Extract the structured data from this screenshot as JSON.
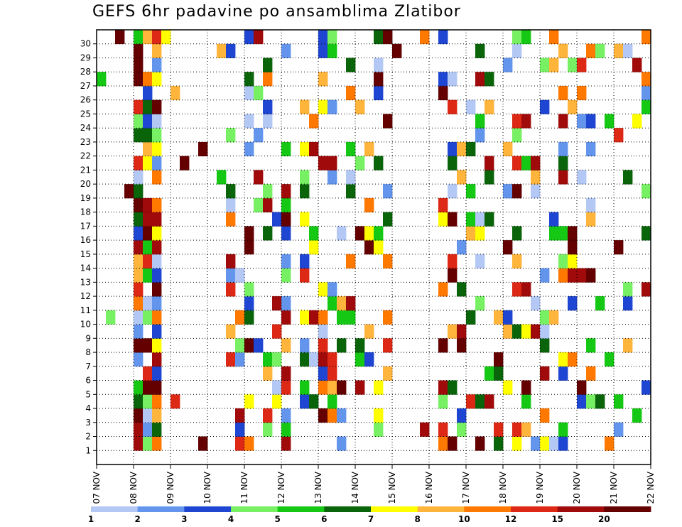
{
  "chart_data": {
    "type": "heatmap",
    "title": "GEFS 6hr padavine po ansamblima Zlatibor",
    "y_categories": [
      "1",
      "2",
      "3",
      "4",
      "5",
      "6",
      "7",
      "8",
      "9",
      "10",
      "11",
      "12",
      "13",
      "14",
      "15",
      "16",
      "17",
      "18",
      "19",
      "20",
      "21",
      "22",
      "23",
      "24",
      "25",
      "26",
      "27",
      "28",
      "29",
      "30"
    ],
    "x_tick_labels": [
      "07 NOV",
      "08 NOV",
      "09 NOV",
      "10 NOV",
      "11 NOV",
      "12 NOV",
      "13 NOV",
      "14 NOV",
      "15 NOV",
      "16 NOV",
      "17 NOV",
      "18 NOV",
      "19 NOV",
      "20 NOV",
      "21 NOV",
      "22 NOV"
    ],
    "time_steps_per_day": 4,
    "grid": true,
    "colorbar": {
      "labels": [
        "1",
        "2",
        "3",
        "4",
        "5",
        "6",
        "7",
        "8",
        "10",
        "12",
        "15",
        "20"
      ],
      "colors": [
        "#b4c8f5",
        "#6495ed",
        "#1e46d2",
        "#78f064",
        "#14c814",
        "#0a640a",
        "#ffff00",
        "#ffb43c",
        "#ff7800",
        "#dc2814",
        "#a00a0a",
        "#640000"
      ]
    },
    "cells": [
      [
        1,
        0,
        2
      ],
      [
        1,
        0,
        1
      ],
      [
        1,
        1,
        1
      ],
      [
        1,
        1,
        2
      ],
      [
        1,
        2,
        2
      ],
      [
        1,
        2,
        3
      ],
      [
        1,
        3,
        0
      ],
      [
        1,
        3,
        1
      ],
      [
        1,
        3,
        2
      ],
      [
        1,
        4,
        0
      ],
      [
        1,
        4,
        1
      ],
      [
        1,
        4,
        2
      ],
      [
        1,
        5,
        1
      ],
      [
        1,
        5,
        2
      ],
      [
        1,
        6,
        0
      ],
      [
        1,
        6,
        1
      ],
      [
        1,
        7,
        1
      ],
      [
        1,
        7,
        2
      ],
      [
        1,
        8,
        1
      ],
      [
        1,
        9,
        1
      ],
      [
        1,
        10,
        1
      ],
      [
        1,
        11,
        1
      ],
      [
        1,
        12,
        1
      ],
      [
        1,
        13,
        1
      ],
      [
        1,
        14,
        1
      ],
      [
        1,
        15,
        1
      ],
      [
        1,
        16,
        1
      ],
      [
        1,
        17,
        1
      ],
      [
        1,
        18,
        1
      ],
      [
        1,
        19,
        1
      ],
      [
        1,
        20,
        1
      ],
      [
        1,
        21,
        1
      ],
      [
        1,
        22,
        1
      ],
      [
        1,
        23,
        1
      ],
      [
        1,
        24,
        1
      ],
      [
        1,
        25,
        1
      ],
      [
        1,
        26,
        1
      ],
      [
        1,
        27,
        1
      ],
      [
        1,
        28,
        1
      ],
      [
        1,
        29,
        1
      ],
      [
        2,
        0,
        8
      ],
      [
        2,
        0,
        4
      ],
      [
        2,
        1,
        1
      ],
      [
        2,
        2,
        1
      ],
      [
        2,
        2,
        2
      ],
      [
        2,
        3,
        8
      ],
      [
        2,
        3,
        4
      ],
      [
        2,
        4,
        1
      ],
      [
        2,
        4,
        2
      ],
      [
        2,
        5,
        1
      ],
      [
        2,
        6,
        0
      ],
      [
        2,
        6,
        1
      ],
      [
        2,
        7,
        2
      ],
      [
        2,
        7,
        4
      ],
      [
        2,
        8,
        2
      ],
      [
        2,
        8,
        4
      ],
      [
        2,
        9,
        1
      ],
      [
        2,
        10,
        7
      ],
      [
        2,
        11,
        1
      ],
      [
        2,
        11,
        1
      ],
      [
        2,
        12,
        4
      ],
      [
        2,
        12,
        10
      ],
      [
        2,
        13,
        0
      ],
      [
        2,
        13,
        0
      ],
      [
        2,
        14,
        8
      ],
      [
        2,
        14,
        9
      ],
      [
        2,
        15,
        1
      ],
      [
        2,
        16,
        10
      ],
      [
        2,
        16,
        4
      ],
      [
        2,
        17,
        5
      ],
      [
        2,
        19,
        10
      ],
      [
        2,
        19,
        7
      ],
      [
        2,
        20,
        1
      ],
      [
        2,
        21,
        7
      ],
      [
        2,
        22,
        1
      ],
      [
        2,
        22,
        1
      ],
      [
        2,
        23,
        7
      ],
      [
        2,
        23,
        7
      ],
      [
        2,
        24,
        7
      ],
      [
        2,
        24,
        4
      ],
      [
        2,
        25,
        1
      ],
      [
        2,
        25,
        1
      ],
      [
        2,
        26,
        9
      ],
      [
        2,
        26,
        1
      ],
      [
        2,
        27,
        9
      ],
      [
        2,
        27,
        1
      ],
      [
        2,
        28,
        10
      ],
      [
        2,
        28,
        10
      ],
      [
        2,
        29,
        8
      ],
      [
        2,
        29,
        7
      ],
      [
        3,
        0,
        8
      ],
      [
        3,
        0,
        4
      ],
      [
        3,
        1,
        1
      ],
      [
        3,
        2,
        1
      ],
      [
        3,
        2,
        2
      ],
      [
        3,
        3,
        8
      ],
      [
        3,
        3,
        4
      ],
      [
        3,
        4,
        1
      ],
      [
        3,
        4,
        2
      ],
      [
        3,
        5,
        1
      ],
      [
        3,
        6,
        0
      ],
      [
        3,
        6,
        1
      ],
      [
        3,
        7,
        2
      ],
      [
        3,
        7,
        4
      ],
      [
        3,
        8,
        2
      ],
      [
        3,
        8,
        4
      ],
      [
        3,
        9,
        1
      ],
      [
        3,
        10,
        7
      ],
      [
        3,
        11,
        1
      ],
      [
        3,
        11,
        1
      ],
      [
        3,
        12,
        4
      ],
      [
        3,
        12,
        10
      ],
      [
        3,
        13,
        0
      ],
      [
        3,
        13,
        0
      ],
      [
        3,
        14,
        8
      ],
      [
        3,
        14,
        9
      ],
      [
        3,
        15,
        1
      ],
      [
        3,
        16,
        10
      ],
      [
        3,
        16,
        4
      ],
      [
        3,
        17,
        5
      ],
      [
        3,
        19,
        10
      ],
      [
        3,
        19,
        7
      ],
      [
        3,
        20,
        1
      ],
      [
        3,
        21,
        7
      ],
      [
        3,
        22,
        1
      ],
      [
        3,
        22,
        1
      ],
      [
        3,
        23,
        7
      ],
      [
        3,
        23,
        7
      ],
      [
        3,
        24,
        7
      ],
      [
        3,
        24,
        4
      ],
      [
        3,
        25,
        1
      ],
      [
        3,
        25,
        1
      ],
      [
        3,
        26,
        9
      ],
      [
        3,
        26,
        1
      ],
      [
        3,
        27,
        9
      ],
      [
        3,
        27,
        1
      ],
      [
        3,
        28,
        10
      ],
      [
        3,
        28,
        10
      ],
      [
        3,
        29,
        8
      ],
      [
        3,
        29,
        7
      ]
    ]
  }
}
